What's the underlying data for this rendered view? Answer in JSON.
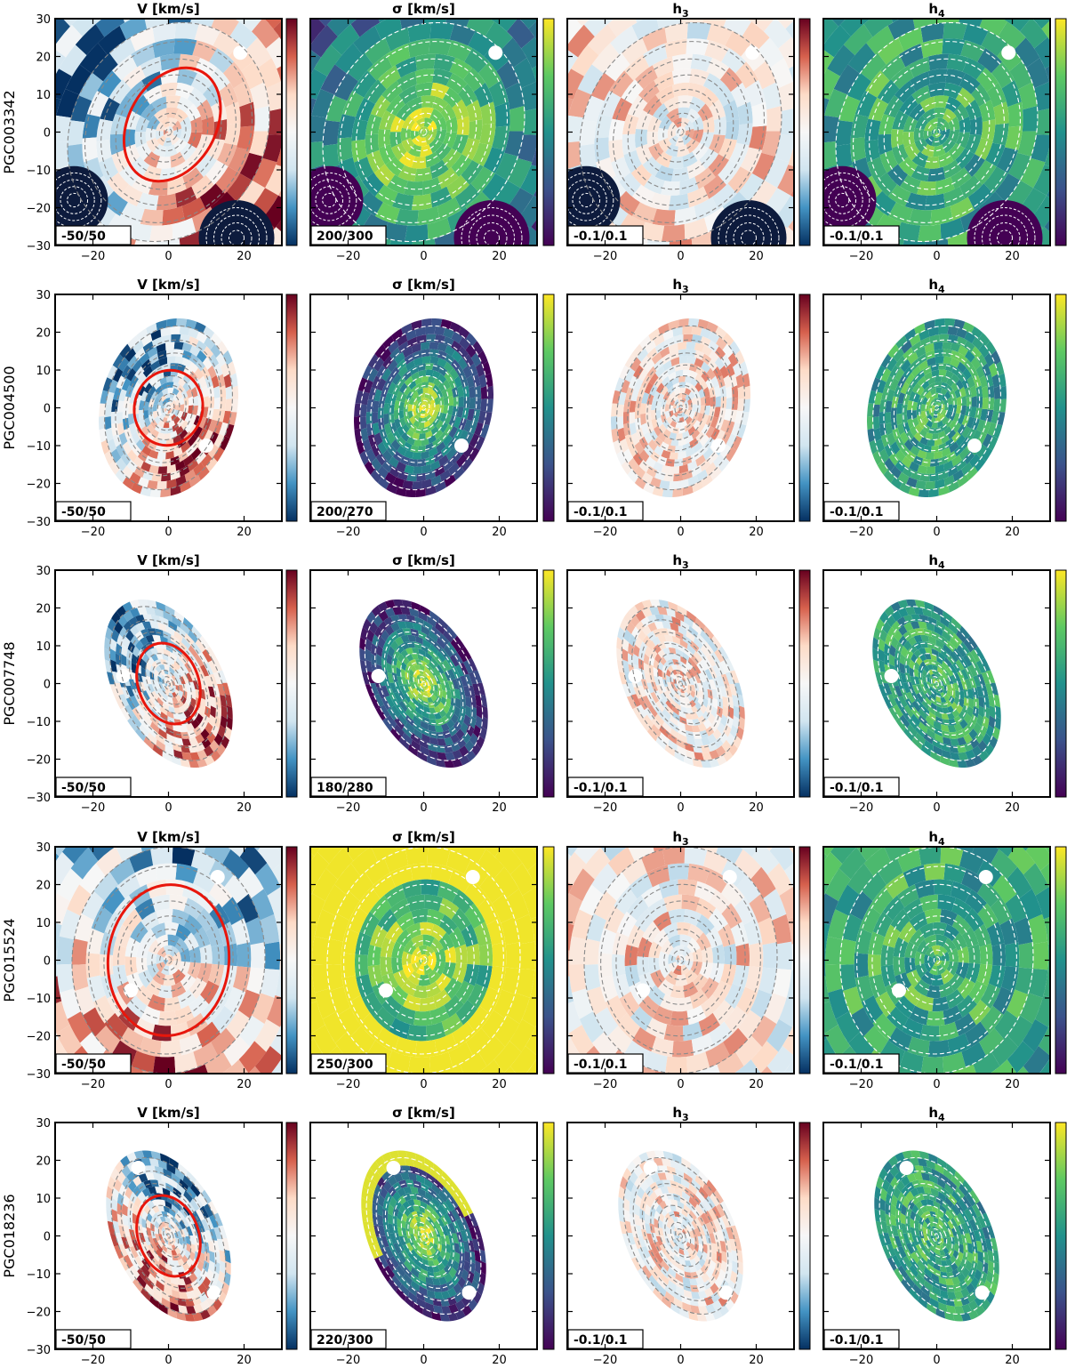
{
  "figure": {
    "columns": [
      {
        "key": "V",
        "title": "V [km/s]",
        "cmap": "rdbu"
      },
      {
        "key": "sigma",
        "title": "σ [km/s]",
        "cmap": "viridis"
      },
      {
        "key": "h3",
        "title": "h",
        "subscript": "3",
        "cmap": "rdbu"
      },
      {
        "key": "h4",
        "title": "h",
        "subscript": "4",
        "cmap": "viridis"
      }
    ],
    "x_ticks": [
      "−20",
      "0",
      "20"
    ],
    "y_ticks": [
      "30",
      "20",
      "10",
      "0",
      "−10",
      "−20",
      "−30"
    ],
    "colors": {
      "rd_high": "#67001f",
      "rd_mid_high": "#d6604d",
      "neutral": "#f7f7f7",
      "bu_mid_low": "#4393c3",
      "bu_low": "#053061",
      "vir_low": "#440154",
      "vir_mid": "#21918c",
      "vir_high": "#fde725",
      "ellipse": "#e8160c"
    },
    "galaxies": [
      {
        "name": "PGC003342",
        "ranges": [
          "-50/50",
          "200/300",
          "-0.1/0.1",
          "-0.1/0.1"
        ],
        "shape": "full",
        "axis_ratio": 0.85,
        "pa_deg": -30,
        "ellipse": {
          "a": 16,
          "b": 11.5,
          "cx": 1,
          "cy": 2,
          "pa_deg": -30
        }
      },
      {
        "name": "PGC004500",
        "ranges": [
          "-50/50",
          "200/270",
          "-0.1/0.1",
          "-0.1/0.1"
        ],
        "shape": "blob",
        "axis_ratio": 0.75,
        "pa_deg": -15,
        "ellipse": {
          "a": 10,
          "b": 9,
          "cx": 0,
          "cy": 0,
          "pa_deg": -15
        }
      },
      {
        "name": "PGC007748",
        "ranges": [
          "-50/50",
          "180/280",
          "-0.1/0.1",
          "-0.1/0.1"
        ],
        "shape": "blob",
        "axis_ratio": 0.6,
        "pa_deg": 28,
        "ellipse": {
          "a": 11,
          "b": 8,
          "cx": 0,
          "cy": 0,
          "pa_deg": 20
        }
      },
      {
        "name": "PGC015524",
        "ranges": [
          "-50/50",
          "250/300",
          "-0.1/0.1",
          "-0.1/0.1"
        ],
        "shape": "full",
        "axis_ratio": 0.85,
        "pa_deg": -5,
        "ellipse": {
          "a": 20,
          "b": 16,
          "cx": 0,
          "cy": 0,
          "pa_deg": -5
        }
      },
      {
        "name": "PGC018236",
        "ranges": [
          "-50/50",
          "220/300",
          "-0.1/0.1",
          "-0.1/0.1"
        ],
        "shape": "blob",
        "axis_ratio": 0.6,
        "pa_deg": 25,
        "ellipse": {
          "a": 11,
          "b": 8,
          "cx": 0,
          "cy": 0,
          "pa_deg": 20
        }
      }
    ]
  },
  "chart_data": {
    "type": "heatmap",
    "description_rows": [
      "PGC003342",
      "PGC004500",
      "PGC007748",
      "PGC015524",
      "PGC018236"
    ],
    "columns": [
      "V [km/s]",
      "σ [km/s]",
      "h3",
      "h4"
    ],
    "x_range": [
      -30,
      30
    ],
    "y_range": [
      -30,
      30
    ],
    "x_ticks": [
      -20,
      0,
      20
    ],
    "y_ticks": [
      30,
      20,
      10,
      0,
      -10,
      -20,
      -30
    ],
    "colorbar_ranges": {
      "PGC003342": {
        "V": [
          -50,
          50
        ],
        "sigma": [
          200,
          300
        ],
        "h3": [
          -0.1,
          0.1
        ],
        "h4": [
          -0.1,
          0.1
        ]
      },
      "PGC004500": {
        "V": [
          -50,
          50
        ],
        "sigma": [
          200,
          270
        ],
        "h3": [
          -0.1,
          0.1
        ],
        "h4": [
          -0.1,
          0.1
        ]
      },
      "PGC007748": {
        "V": [
          -50,
          50
        ],
        "sigma": [
          180,
          280
        ],
        "h3": [
          -0.1,
          0.1
        ],
        "h4": [
          -0.1,
          0.1
        ]
      },
      "PGC015524": {
        "V": [
          -50,
          50
        ],
        "sigma": [
          250,
          300
        ],
        "h3": [
          -0.1,
          0.1
        ],
        "h4": [
          -0.1,
          0.1
        ]
      },
      "PGC018236": {
        "V": [
          -50,
          50
        ],
        "sigma": [
          220,
          300
        ],
        "h3": [
          -0.1,
          0.1
        ],
        "h4": [
          -0.1,
          0.1
        ]
      }
    },
    "ellipse_overlay_on": "V [km/s]"
  }
}
